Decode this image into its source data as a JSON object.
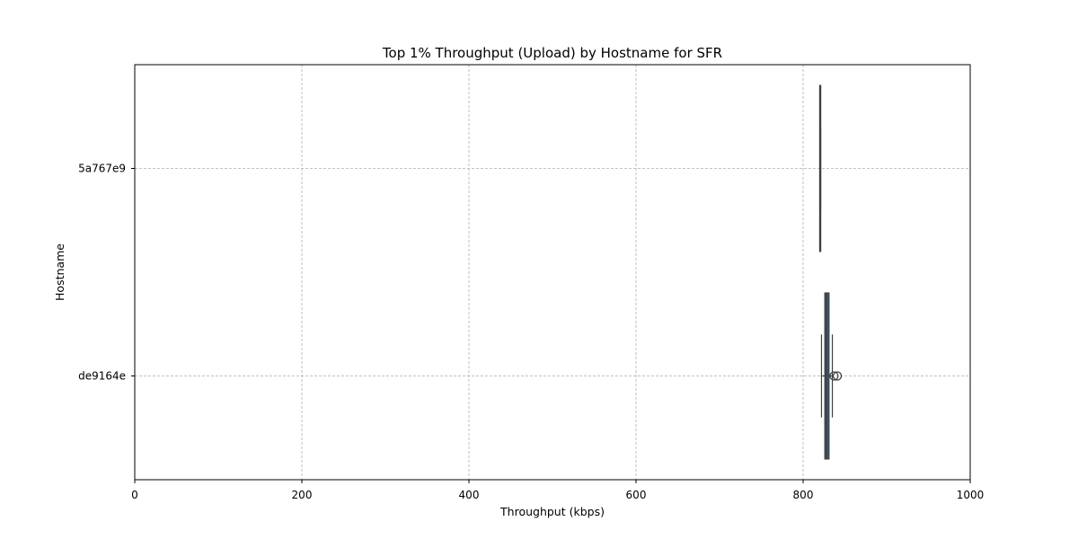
{
  "chart_data": {
    "type": "boxplot",
    "orientation": "horizontal",
    "title": "Top 1% Throughput (Upload) by Hostname for SFR",
    "xlabel": "Throughput (kbps)",
    "ylabel": "Hostname",
    "xlim": [
      0,
      1000
    ],
    "xticks": [
      0,
      200,
      400,
      600,
      800,
      1000
    ],
    "xtick_labels": [
      "0",
      "200",
      "400",
      "600",
      "800",
      "1000"
    ],
    "grid": true,
    "box_color": "#2f5f8a",
    "categories": [
      "5a767e9",
      "de9164e"
    ],
    "boxes": [
      {
        "name": "5a767e9",
        "whisker_low": 820,
        "q1": 820,
        "median": 820,
        "q3": 821,
        "whisker_high": 821,
        "outliers": []
      },
      {
        "name": "de9164e",
        "whisker_low": 822,
        "q1": 826,
        "median": 828,
        "q3": 831,
        "whisker_high": 835,
        "outliers": [
          837,
          841
        ]
      }
    ]
  }
}
